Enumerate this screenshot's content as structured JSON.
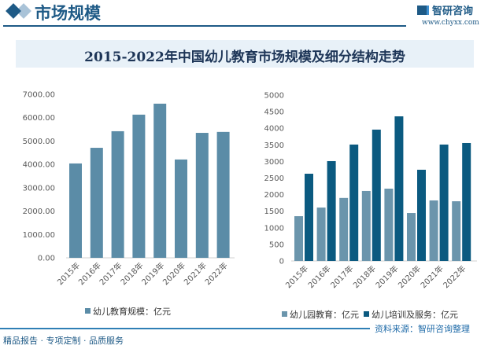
{
  "header": {
    "section_title": "市场规模",
    "brand": "智研咨询",
    "url": "www.chyxx.com"
  },
  "title": "2015-2022年中国幼儿教育市场规模及细分结构走势",
  "footer": {
    "tagline": "精品报告 · 专项定制 · 品质服务",
    "source": "资料来源：智研咨询整理"
  },
  "chart_data": [
    {
      "type": "bar",
      "categories": [
        "2015年",
        "2016年",
        "2017年",
        "2018年",
        "2019年",
        "2020年",
        "2021年",
        "2022年"
      ],
      "series": [
        {
          "name": "幼儿教育规模：亿元",
          "color": "#5b8ca7",
          "values": [
            4040,
            4710,
            5420,
            6130,
            6600,
            4210,
            5350,
            5390
          ]
        }
      ],
      "ylim": [
        0,
        7000
      ],
      "yticks": [
        "0.00",
        "1000.00",
        "2000.00",
        "3000.00",
        "4000.00",
        "5000.00",
        "6000.00",
        "7000.00"
      ],
      "legend": "bottom",
      "grid": false
    },
    {
      "type": "bar",
      "categories": [
        "2015年",
        "2016年",
        "2017年",
        "2018年",
        "2019年",
        "2020年",
        "2021年",
        "2022年"
      ],
      "series": [
        {
          "name": "幼儿园教育：亿元",
          "color": "#6b95ac",
          "values": [
            1350,
            1610,
            1900,
            2110,
            2180,
            1445,
            1825,
            1800
          ]
        },
        {
          "name": "幼儿培训及服务：亿元",
          "color": "#0b5a80",
          "values": [
            2630,
            3010,
            3510,
            3960,
            4360,
            2750,
            3510,
            3555
          ]
        }
      ],
      "ylim": [
        0,
        5000
      ],
      "yticks": [
        "0",
        "500",
        "1000",
        "1500",
        "2000",
        "2500",
        "3000",
        "3500",
        "4000",
        "4500",
        "5000"
      ],
      "legend": "bottom",
      "grid": false
    }
  ]
}
